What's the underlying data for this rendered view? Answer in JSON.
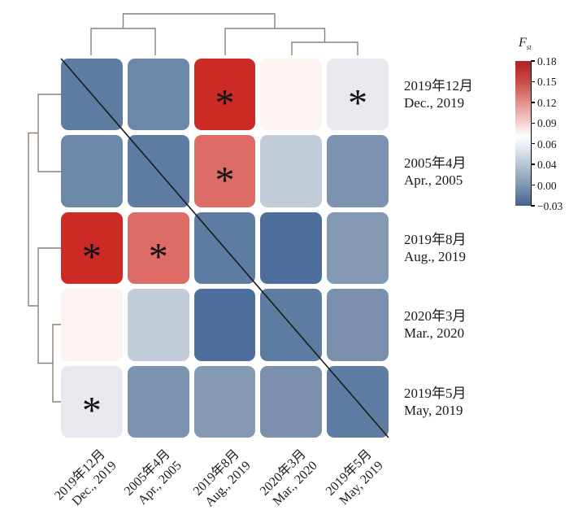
{
  "figure": {
    "type": "clustered-heatmap",
    "description": "Pairwise Fst heatmap between five sampling dates with row and column dendrograms, significance asterisks and diagonal identity line"
  },
  "chart_data": {
    "type": "heatmap",
    "title": "",
    "labels": [
      {
        "zh": "2019年12月",
        "en": "Dec., 2019"
      },
      {
        "zh": "2005年4月",
        "en": "Apr., 2005"
      },
      {
        "zh": "2019年8月",
        "en": "Aug., 2019"
      },
      {
        "zh": "2020年3月",
        "en": "Mar., 2020"
      },
      {
        "zh": "2019年5月",
        "en": "May, 2019"
      }
    ],
    "clustering": "columns/rows ordered by dendrogram ((Dec.2019, Apr.2005), (Aug.2019, (Mar.2020, May 2019)))",
    "values_estimated": [
      [
        0,
        0.02,
        0.17,
        0.075,
        0.065
      ],
      [
        0.02,
        0,
        0.135,
        0.05,
        0.025
      ],
      [
        0.17,
        0.135,
        0,
        0.0,
        0.03
      ],
      [
        0.075,
        0.05,
        0.0,
        0,
        0.025
      ],
      [
        0.065,
        0.025,
        0.03,
        0.025,
        0
      ]
    ],
    "matrix_colors": [
      [
        "#5e7ca1",
        "#6d89a9",
        "#cc2a25",
        "#fdf4f2",
        "#e8e9ef"
      ],
      [
        "#6d89a9",
        "#5e7ca1",
        "#dd6b66",
        "#c2cdd9",
        "#7c93af"
      ],
      [
        "#cc2a25",
        "#dd6b66",
        "#5e7ca1",
        "#4e6f9c",
        "#8399b4"
      ],
      [
        "#fdf4f2",
        "#c2cdd9",
        "#4e6f9c",
        "#5e7ca1",
        "#7a90ad"
      ],
      [
        "#e8e9ef",
        "#7c93af",
        "#8399b4",
        "#7a90ad",
        "#5e7ca1"
      ]
    ],
    "significance": [
      [
        0,
        0,
        1,
        0,
        1
      ],
      [
        0,
        0,
        1,
        0,
        0
      ],
      [
        1,
        1,
        0,
        0,
        0
      ],
      [
        0,
        0,
        0,
        0,
        0
      ],
      [
        1,
        0,
        0,
        0,
        0
      ]
    ],
    "significance_symbol": "*",
    "diagonal_line": true,
    "legend": {
      "title_main": "F",
      "title_sub": "st",
      "vmin": -0.03,
      "vmax": 0.18,
      "ticks": [
        "0.18",
        "0.15",
        "0.12",
        "0.09",
        "0.06",
        "0.04",
        "0.00",
        "−0.03"
      ],
      "gradient_stops": [
        [
          "0%",
          "#ae2025"
        ],
        [
          "14%",
          "#c94b45"
        ],
        [
          "30%",
          "#e39791"
        ],
        [
          "45%",
          "#f8ddda"
        ],
        [
          "52%",
          "#fefefe"
        ],
        [
          "62%",
          "#dce4eb"
        ],
        [
          "75%",
          "#a8bbce"
        ],
        [
          "88%",
          "#7690ae"
        ],
        [
          "100%",
          "#456290"
        ]
      ]
    }
  },
  "colors": {
    "dendrogram": "#8a8078",
    "diagonal_line": "#1a1a1a",
    "asterisk": "#111111",
    "background": "#ffffff"
  }
}
